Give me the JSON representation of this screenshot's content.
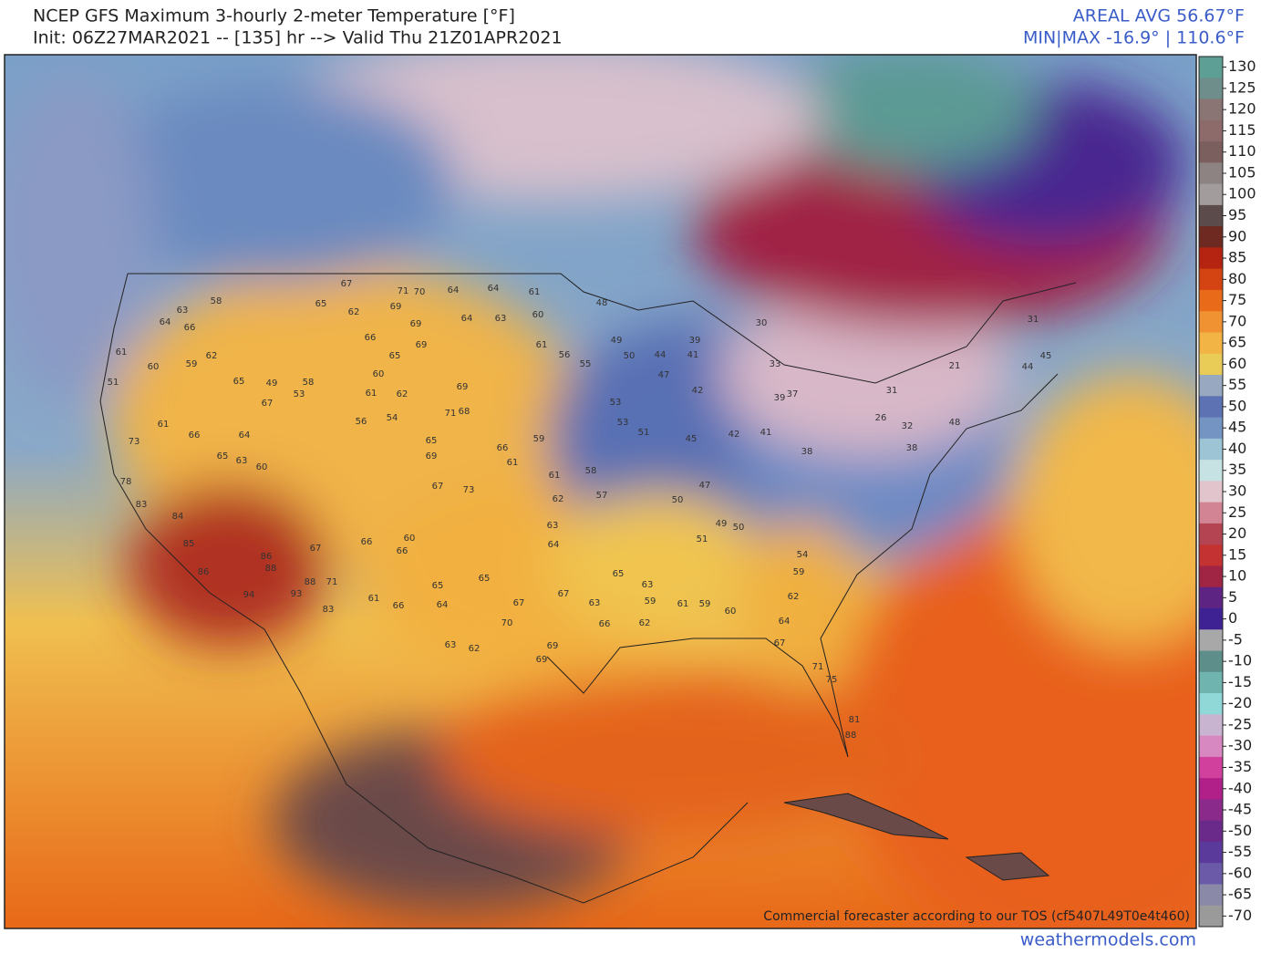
{
  "header": {
    "title": "NCEP GFS Maximum 3-hourly 2-meter Temperature [°F]",
    "subtitle": "Init: 06Z27MAR2021 -- [135] hr --> Valid Thu 21Z01APR2021",
    "areal_avg": "AREAL AVG 56.67°F",
    "min_max": "MIN|MAX -16.9° | 110.6°F"
  },
  "colorbar": {
    "ticks": [
      130,
      125,
      120,
      115,
      110,
      105,
      100,
      95,
      90,
      85,
      80,
      75,
      70,
      65,
      60,
      55,
      50,
      45,
      40,
      35,
      30,
      25,
      20,
      15,
      10,
      5,
      0,
      -5,
      -10,
      -15,
      -20,
      -25,
      -30,
      -35,
      -40,
      -45,
      -50,
      -55,
      -60,
      -65,
      -70
    ],
    "colors": [
      "#5d9f95",
      "#6d8e8a",
      "#8a7474",
      "#8d6b6b",
      "#7b5f5f",
      "#8d8383",
      "#a39c9c",
      "#5b4b4b",
      "#6e2a20",
      "#b42410",
      "#d44412",
      "#e96a18",
      "#f09232",
      "#f2b444",
      "#e9cb58",
      "#98a8c0",
      "#5c72b2",
      "#7494c4",
      "#9cc4d4",
      "#c6e2e2",
      "#e2c4cc",
      "#d28494",
      "#b44452",
      "#c43232",
      "#a02444",
      "#5e2484",
      "#3e2294",
      "#a8a8a8",
      "#5e8e8a",
      "#70b4b0",
      "#90d8d8",
      "#c8b4d0",
      "#d888c0",
      "#d0409c",
      "#b02088",
      "#8a2a8a",
      "#6a2a8a",
      "#5a3a9a",
      "#6a5aa8",
      "#8a8aa8",
      "#9a9a9a"
    ]
  },
  "stations": [
    67,
    71,
    70,
    64,
    64,
    61,
    69,
    62,
    65,
    69,
    66,
    69,
    64,
    63,
    60,
    61,
    56,
    55,
    48,
    49,
    50,
    44,
    41,
    39,
    30,
    33,
    37,
    39,
    31,
    26,
    32,
    38,
    21,
    45,
    31,
    44,
    48,
    47,
    42,
    53,
    53,
    51,
    45,
    42,
    41,
    38,
    47,
    50,
    49,
    51,
    50,
    54,
    59,
    62,
    64,
    67,
    71,
    75,
    81,
    88,
    61,
    59,
    60,
    63,
    59,
    62,
    65,
    67,
    63,
    66,
    70,
    67,
    65,
    63,
    64,
    62,
    61,
    58,
    57,
    61,
    66,
    59,
    69,
    68,
    71,
    73,
    67,
    65,
    69,
    56,
    54,
    62,
    60,
    61,
    65,
    58,
    53,
    49,
    65,
    62,
    59,
    51,
    61,
    60,
    63,
    58,
    64,
    66,
    67,
    61,
    66,
    65,
    63,
    60,
    64,
    73,
    78,
    83,
    84,
    85,
    86,
    94,
    88,
    86,
    88,
    93,
    83,
    71,
    67,
    66,
    66,
    60,
    65,
    64,
    66,
    61,
    63,
    62,
    69,
    69
  ],
  "watermark": "Commercial forecaster according to our TOS (cf5407L49T0e4t460)",
  "footer": "weathermodels.com"
}
